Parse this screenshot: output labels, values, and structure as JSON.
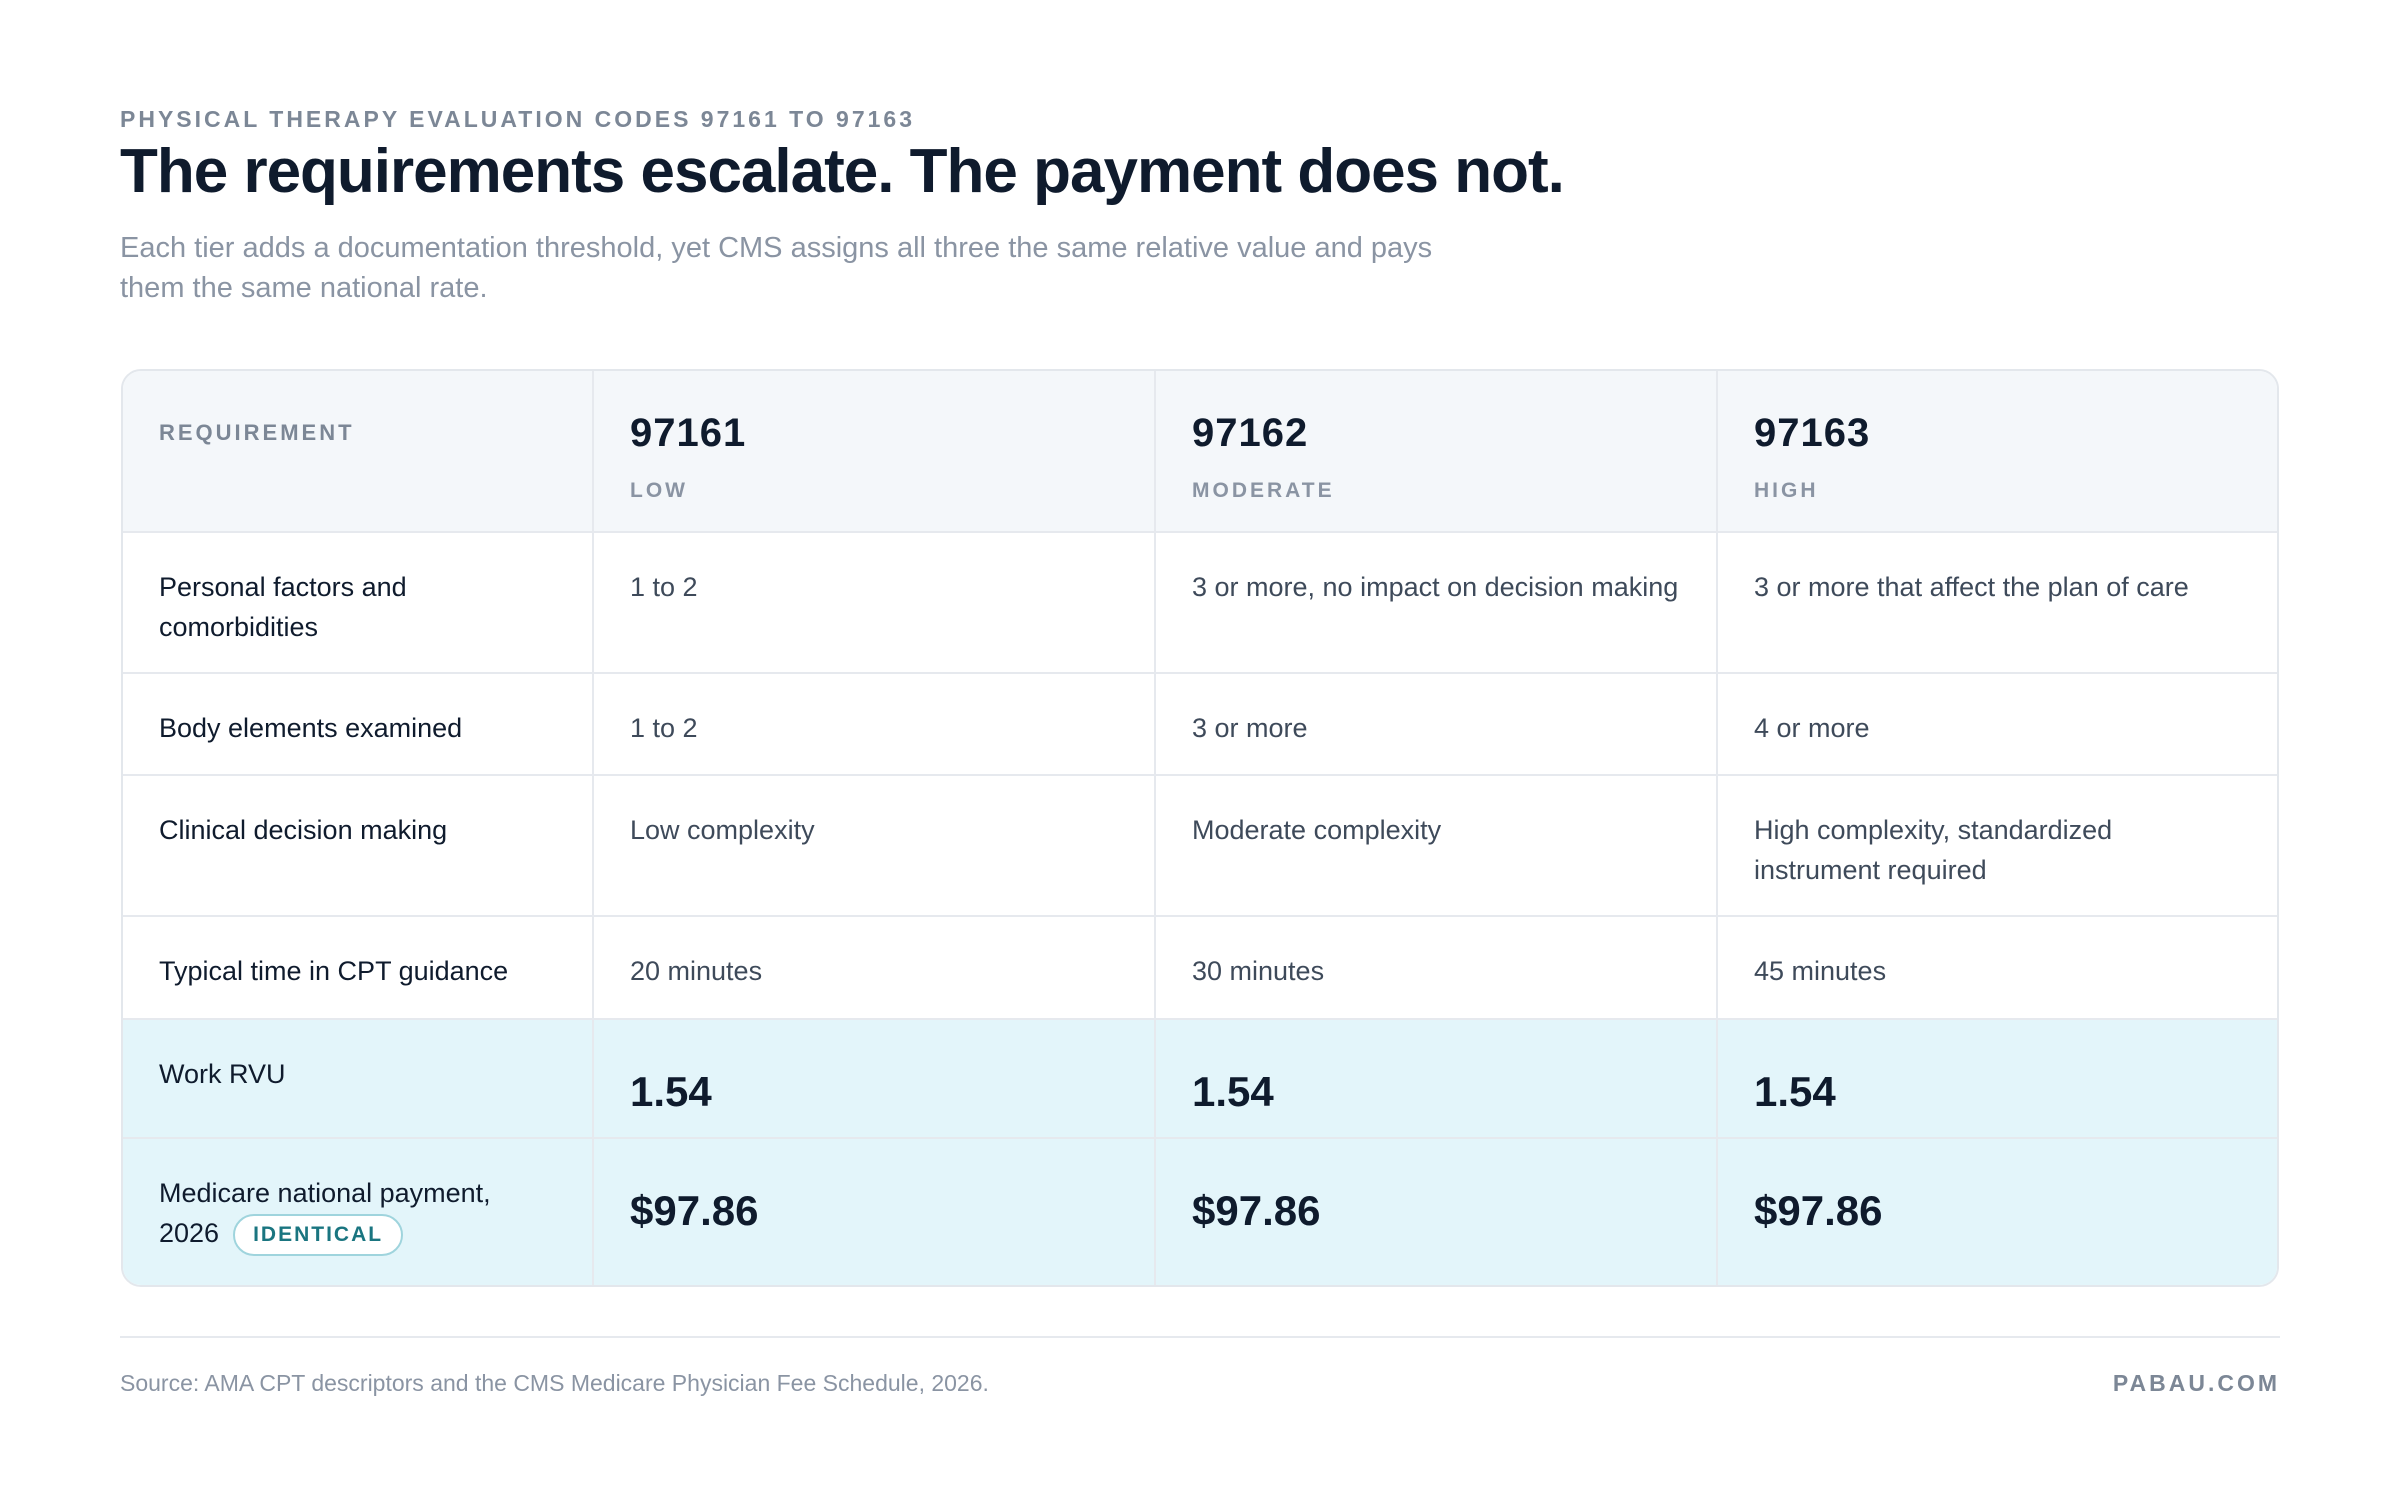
{
  "header": {
    "eyebrow": "PHYSICAL THERAPY EVALUATION CODES 97161 TO 97163",
    "title": "The requirements escalate. The payment does not.",
    "subtitle": "Each tier adds a documentation threshold, yet CMS assigns all three the same relative value and pays them the same national rate."
  },
  "table": {
    "header": {
      "label": "REQUIREMENT",
      "columns": [
        {
          "code": "97161",
          "tier": "LOW"
        },
        {
          "code": "97162",
          "tier": "MODERATE"
        },
        {
          "code": "97163",
          "tier": "HIGH"
        }
      ]
    },
    "rows": [
      {
        "label": "Personal factors and comorbidities",
        "values": [
          "1 to 2",
          "3 or more, no impact on decision making",
          "3 or more that affect the plan of care"
        ]
      },
      {
        "label": "Body elements examined",
        "values": [
          "1 to 2",
          "3 or more",
          "4 or more"
        ]
      },
      {
        "label": "Clinical decision making",
        "values": [
          "Low complexity",
          "Moderate complexity",
          "High complexity, standardized instrument required"
        ]
      },
      {
        "label": "Typical time in CPT guidance",
        "values": [
          "20 minutes",
          "30 minutes",
          "45 minutes"
        ]
      },
      {
        "label": "Work RVU",
        "values": [
          "1.54",
          "1.54",
          "1.54"
        ]
      },
      {
        "label": "Medicare national payment, 2026",
        "badge": "IDENTICAL",
        "values": [
          "$97.86",
          "$97.86",
          "$97.86"
        ]
      }
    ]
  },
  "footer": {
    "source": "Source: AMA CPT descriptors and the CMS Medicare Physician Fee Schedule, 2026.",
    "brand": "PABAU.COM"
  }
}
